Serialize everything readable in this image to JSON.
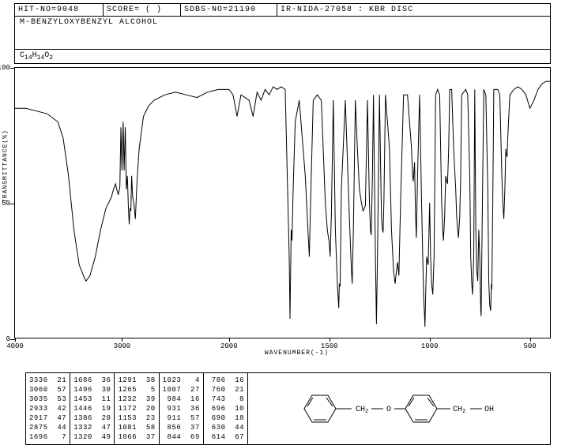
{
  "header": {
    "hit_no": "HIT-NO=9048",
    "score": "SCORE=  ( )",
    "sdbs_no": "SDBS-NO=21190",
    "ir_info": "IR-NIDA-27058 : KBR DISC"
  },
  "compound_name": "M-BENZYLOXYBENZYL ALCOHOL",
  "formula": {
    "c": "14",
    "h": "14",
    "o": "2"
  },
  "chart": {
    "y_label": "TRANSMITTANCE(%)",
    "x_label": "WAVENUMBER(-1)",
    "y_ticks": [
      0,
      50,
      100
    ],
    "x_ticks": [
      4000,
      3000,
      2000,
      1500,
      1000,
      500
    ],
    "xlim": [
      4000,
      400
    ],
    "ylim": [
      0,
      100
    ],
    "line_color": "#000000",
    "background": "#ffffff",
    "spectrum": [
      [
        4000,
        85
      ],
      [
        3900,
        85
      ],
      [
        3800,
        84
      ],
      [
        3700,
        83
      ],
      [
        3600,
        80
      ],
      [
        3550,
        74
      ],
      [
        3500,
        60
      ],
      [
        3450,
        40
      ],
      [
        3400,
        27
      ],
      [
        3350,
        22
      ],
      [
        3336,
        21
      ],
      [
        3300,
        23
      ],
      [
        3250,
        30
      ],
      [
        3200,
        40
      ],
      [
        3150,
        48
      ],
      [
        3100,
        52
      ],
      [
        3080,
        55
      ],
      [
        3060,
        57
      ],
      [
        3050,
        55
      ],
      [
        3035,
        53
      ],
      [
        3020,
        56
      ],
      [
        3010,
        78
      ],
      [
        3000,
        62
      ],
      [
        2990,
        80
      ],
      [
        2980,
        62
      ],
      [
        2970,
        78
      ],
      [
        2960,
        55
      ],
      [
        2950,
        60
      ],
      [
        2940,
        48
      ],
      [
        2933,
        42
      ],
      [
        2925,
        48
      ],
      [
        2917,
        47
      ],
      [
        2910,
        60
      ],
      [
        2900,
        52
      ],
      [
        2890,
        50
      ],
      [
        2875,
        44
      ],
      [
        2860,
        58
      ],
      [
        2840,
        70
      ],
      [
        2800,
        82
      ],
      [
        2750,
        86
      ],
      [
        2700,
        88
      ],
      [
        2600,
        90
      ],
      [
        2500,
        91
      ],
      [
        2400,
        90
      ],
      [
        2300,
        89
      ],
      [
        2200,
        91
      ],
      [
        2100,
        92
      ],
      [
        2000,
        92
      ],
      [
        1980,
        90
      ],
      [
        1960,
        82
      ],
      [
        1940,
        90
      ],
      [
        1900,
        88
      ],
      [
        1880,
        82
      ],
      [
        1860,
        91
      ],
      [
        1840,
        88
      ],
      [
        1820,
        92
      ],
      [
        1800,
        90
      ],
      [
        1780,
        93
      ],
      [
        1760,
        92
      ],
      [
        1740,
        93
      ],
      [
        1720,
        92
      ],
      [
        1700,
        30
      ],
      [
        1696,
        7
      ],
      [
        1690,
        40
      ],
      [
        1686,
        36
      ],
      [
        1680,
        55
      ],
      [
        1670,
        80
      ],
      [
        1650,
        88
      ],
      [
        1620,
        60
      ],
      [
        1600,
        30
      ],
      [
        1590,
        60
      ],
      [
        1580,
        88
      ],
      [
        1560,
        90
      ],
      [
        1540,
        88
      ],
      [
        1520,
        50
      ],
      [
        1510,
        40
      ],
      [
        1500,
        35
      ],
      [
        1496,
        30
      ],
      [
        1490,
        45
      ],
      [
        1480,
        88
      ],
      [
        1470,
        40
      ],
      [
        1460,
        20
      ],
      [
        1453,
        11
      ],
      [
        1450,
        20
      ],
      [
        1446,
        19
      ],
      [
        1440,
        55
      ],
      [
        1420,
        88
      ],
      [
        1400,
        45
      ],
      [
        1390,
        25
      ],
      [
        1386,
        20
      ],
      [
        1380,
        40
      ],
      [
        1370,
        88
      ],
      [
        1360,
        70
      ],
      [
        1350,
        55
      ],
      [
        1340,
        50
      ],
      [
        1332,
        47
      ],
      [
        1325,
        48
      ],
      [
        1320,
        49
      ],
      [
        1310,
        88
      ],
      [
        1300,
        50
      ],
      [
        1295,
        40
      ],
      [
        1291,
        38
      ],
      [
        1285,
        60
      ],
      [
        1280,
        90
      ],
      [
        1270,
        30
      ],
      [
        1265,
        5
      ],
      [
        1260,
        30
      ],
      [
        1250,
        90
      ],
      [
        1240,
        45
      ],
      [
        1235,
        40
      ],
      [
        1232,
        39
      ],
      [
        1228,
        50
      ],
      [
        1220,
        90
      ],
      [
        1200,
        70
      ],
      [
        1190,
        40
      ],
      [
        1180,
        25
      ],
      [
        1172,
        20
      ],
      [
        1165,
        25
      ],
      [
        1160,
        28
      ],
      [
        1153,
        23
      ],
      [
        1145,
        50
      ],
      [
        1130,
        90
      ],
      [
        1110,
        90
      ],
      [
        1090,
        70
      ],
      [
        1085,
        60
      ],
      [
        1081,
        58
      ],
      [
        1075,
        65
      ],
      [
        1070,
        45
      ],
      [
        1066,
        37
      ],
      [
        1060,
        60
      ],
      [
        1050,
        90
      ],
      [
        1040,
        50
      ],
      [
        1030,
        15
      ],
      [
        1025,
        8
      ],
      [
        1023,
        4
      ],
      [
        1020,
        15
      ],
      [
        1015,
        30
      ],
      [
        1010,
        28
      ],
      [
        1007,
        27
      ],
      [
        1000,
        50
      ],
      [
        995,
        30
      ],
      [
        990,
        20
      ],
      [
        984,
        16
      ],
      [
        978,
        30
      ],
      [
        970,
        90
      ],
      [
        960,
        92
      ],
      [
        950,
        90
      ],
      [
        940,
        50
      ],
      [
        935,
        40
      ],
      [
        931,
        36
      ],
      [
        925,
        45
      ],
      [
        920,
        60
      ],
      [
        915,
        58
      ],
      [
        911,
        57
      ],
      [
        905,
        70
      ],
      [
        900,
        92
      ],
      [
        890,
        92
      ],
      [
        880,
        70
      ],
      [
        870,
        55
      ],
      [
        865,
        45
      ],
      [
        860,
        40
      ],
      [
        856,
        37
      ],
      [
        850,
        45
      ],
      [
        845,
        60
      ],
      [
        844,
        69
      ],
      [
        840,
        90
      ],
      [
        820,
        92
      ],
      [
        810,
        90
      ],
      [
        800,
        60
      ],
      [
        795,
        30
      ],
      [
        790,
        20
      ],
      [
        786,
        16
      ],
      [
        780,
        30
      ],
      [
        775,
        92
      ],
      [
        770,
        40
      ],
      [
        765,
        25
      ],
      [
        760,
        21
      ],
      [
        755,
        40
      ],
      [
        750,
        30
      ],
      [
        745,
        10
      ],
      [
        743,
        8
      ],
      [
        740,
        30
      ],
      [
        730,
        92
      ],
      [
        720,
        90
      ],
      [
        710,
        55
      ],
      [
        705,
        20
      ],
      [
        700,
        12
      ],
      [
        696,
        10
      ],
      [
        692,
        20
      ],
      [
        690,
        18
      ],
      [
        685,
        50
      ],
      [
        680,
        92
      ],
      [
        670,
        92
      ],
      [
        660,
        92
      ],
      [
        650,
        90
      ],
      [
        640,
        60
      ],
      [
        635,
        50
      ],
      [
        630,
        44
      ],
      [
        625,
        55
      ],
      [
        620,
        70
      ],
      [
        618,
        68
      ],
      [
        614,
        67
      ],
      [
        610,
        75
      ],
      [
        600,
        90
      ],
      [
        580,
        92
      ],
      [
        560,
        93
      ],
      [
        540,
        92
      ],
      [
        520,
        90
      ],
      [
        500,
        85
      ],
      [
        480,
        88
      ],
      [
        460,
        92
      ],
      [
        440,
        94
      ],
      [
        420,
        95
      ],
      [
        400,
        95
      ]
    ]
  },
  "peak_table": [
    [
      [
        "3336",
        "21"
      ],
      [
        "3060",
        "57"
      ],
      [
        "3035",
        "53"
      ],
      [
        "2933",
        "42"
      ],
      [
        "2917",
        "47"
      ],
      [
        "2875",
        "44"
      ],
      [
        "1696",
        " 7"
      ]
    ],
    [
      [
        "1686",
        "36"
      ],
      [
        "1496",
        "30"
      ],
      [
        "1453",
        "11"
      ],
      [
        "1446",
        "19"
      ],
      [
        "1386",
        "20"
      ],
      [
        "1332",
        "47"
      ],
      [
        "1320",
        "49"
      ]
    ],
    [
      [
        "1291",
        "38"
      ],
      [
        "1265",
        " 5"
      ],
      [
        "1232",
        "39"
      ],
      [
        "1172",
        "20"
      ],
      [
        "1153",
        "23"
      ],
      [
        "1081",
        "58"
      ],
      [
        "1066",
        "37"
      ]
    ],
    [
      [
        "1023",
        " 4"
      ],
      [
        "1007",
        "27"
      ],
      [
        " 984",
        "16"
      ],
      [
        " 931",
        "36"
      ],
      [
        " 911",
        "57"
      ],
      [
        " 856",
        "37"
      ],
      [
        " 844",
        "69"
      ]
    ],
    [
      [
        " 786",
        "16"
      ],
      [
        " 760",
        "21"
      ],
      [
        " 743",
        " 8"
      ],
      [
        " 696",
        "10"
      ],
      [
        " 690",
        "18"
      ],
      [
        " 630",
        "44"
      ],
      [
        " 614",
        "67"
      ]
    ]
  ],
  "structure_labels": {
    "ch2_1": "CH₂",
    "o": "O",
    "ch2_2": "CH₂",
    "oh": "OH"
  }
}
